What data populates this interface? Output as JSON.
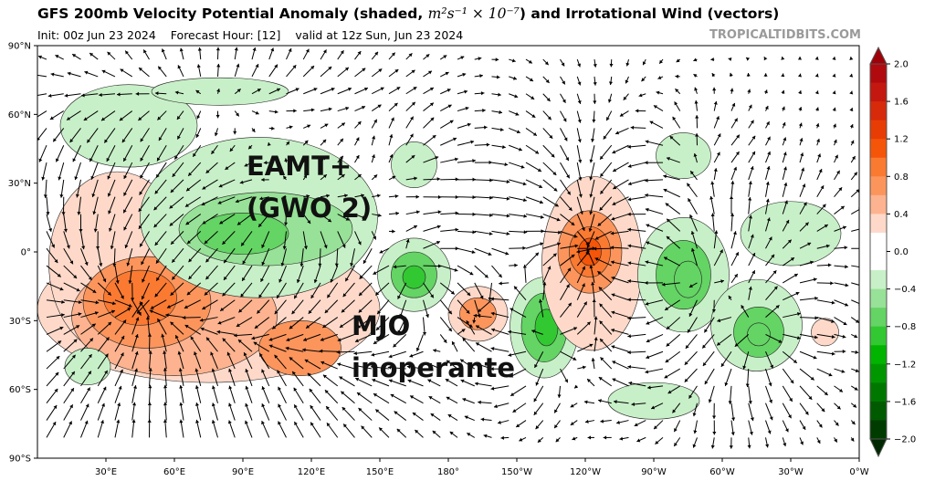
{
  "header": {
    "title_prefix": "GFS 200mb Velocity Potential Anomaly (shaded, ",
    "title_units": "m²s⁻¹ × 10⁻⁷",
    "title_suffix": ") and Irrotational Wind (vectors)",
    "init": "Init: 00z Jun 23 2024",
    "forecast_hour": "Forecast Hour: [12]",
    "valid": "valid at 12z Sun, Jun 23 2024",
    "brand": "TROPICALTIDBITS.COM"
  },
  "axes": {
    "lat_labels": [
      "90°N",
      "60°N",
      "30°N",
      "0°",
      "30°S",
      "60°S",
      "90°S"
    ],
    "lat_values": [
      90,
      60,
      30,
      0,
      -30,
      -60,
      -90
    ],
    "lon_labels": [
      "30°E",
      "60°E",
      "90°E",
      "120°E",
      "150°E",
      "180°",
      "150°W",
      "120°W",
      "90°W",
      "60°W",
      "30°W",
      "0°W"
    ],
    "lon_values": [
      30,
      60,
      90,
      120,
      150,
      180,
      210,
      240,
      270,
      300,
      330,
      360
    ]
  },
  "colorbar": {
    "tick_labels": [
      "2.0",
      "1.6",
      "1.2",
      "0.8",
      "0.4",
      "0.0",
      "−0.4",
      "−0.8",
      "−1.2",
      "−1.6",
      "−2.0"
    ],
    "tick_values": [
      2.0,
      1.6,
      1.2,
      0.8,
      0.4,
      0.0,
      -0.4,
      -0.8,
      -1.2,
      -1.6,
      -2.0
    ],
    "min": -2.0,
    "max": 2.0,
    "step": 0.2,
    "colors_high_to_low": [
      "#b00a0f",
      "#c4170f",
      "#d62a0a",
      "#e83c05",
      "#f55508",
      "#fa7a32",
      "#fc955c",
      "#fdb38f",
      "#fed9c9",
      "#ffffff",
      "#ffffff",
      "#c8f0c8",
      "#98e198",
      "#64d464",
      "#32c832",
      "#00b400",
      "#009600",
      "#007800",
      "#005a00",
      "#003c00"
    ],
    "over_color": "#a00008",
    "under_color": "#002800"
  },
  "annotations": {
    "eamt": "EAMT+",
    "gwo": "(GWO 2)",
    "mjo": "MJO",
    "inoperante": "inoperante"
  },
  "anomaly_centers": [
    {
      "lon": 75,
      "lat": -25,
      "rlon": 75,
      "rlat": 32,
      "value": 0.3
    },
    {
      "lon": 35,
      "lat": -5,
      "rlon": 30,
      "rlat": 40,
      "value": 0.3
    },
    {
      "lon": 60,
      "lat": -28,
      "rlon": 45,
      "rlat": 26,
      "value": 0.5
    },
    {
      "lon": 48,
      "lat": -22,
      "rlon": 28,
      "rlat": 20,
      "value": 0.7
    },
    {
      "lon": 45,
      "lat": -20,
      "rlon": 16,
      "rlat": 12,
      "value": 0.9
    },
    {
      "lon": 115,
      "lat": -42,
      "rlon": 18,
      "rlat": 12,
      "value": 0.7
    },
    {
      "lon": 97,
      "lat": 15,
      "rlon": 52,
      "rlat": 35,
      "value": -0.3
    },
    {
      "lon": 40,
      "lat": 55,
      "rlon": 30,
      "rlat": 18,
      "value": -0.3
    },
    {
      "lon": 100,
      "lat": 10,
      "rlon": 38,
      "rlat": 16,
      "value": -0.5
    },
    {
      "lon": 90,
      "lat": 8,
      "rlon": 20,
      "rlat": 9,
      "value": -0.7
    },
    {
      "lon": 165,
      "lat": -10,
      "rlon": 16,
      "rlat": 16,
      "value": -0.3
    },
    {
      "lon": 165,
      "lat": -10,
      "rlon": 10,
      "rlat": 10,
      "value": -0.6
    },
    {
      "lon": 165,
      "lat": -11,
      "rlon": 5,
      "rlat": 5,
      "value": -0.9
    },
    {
      "lon": 165,
      "lat": 38,
      "rlon": 10,
      "rlat": 10,
      "value": -0.3
    },
    {
      "lon": 193,
      "lat": -27,
      "rlon": 13,
      "rlat": 12,
      "value": 0.4
    },
    {
      "lon": 193,
      "lat": -27,
      "rlon": 8,
      "rlat": 7,
      "value": 0.6
    },
    {
      "lon": 222,
      "lat": -33,
      "rlon": 15,
      "rlat": 22,
      "value": -0.3
    },
    {
      "lon": 222,
      "lat": -33,
      "rlon": 10,
      "rlat": 15,
      "value": -0.6
    },
    {
      "lon": 223,
      "lat": -33,
      "rlon": 5,
      "rlat": 8,
      "value": -0.9
    },
    {
      "lon": 243,
      "lat": -5,
      "rlon": 22,
      "rlat": 38,
      "value": 0.3
    },
    {
      "lon": 242,
      "lat": 0,
      "rlon": 14,
      "rlat": 18,
      "value": 0.6
    },
    {
      "lon": 242,
      "lat": 0,
      "rlon": 9,
      "rlat": 11,
      "value": 0.9
    },
    {
      "lon": 242,
      "lat": 0,
      "rlon": 5,
      "rlat": 6,
      "value": 1.1
    },
    {
      "lon": 283,
      "lat": -10,
      "rlon": 20,
      "rlat": 25,
      "value": -0.3
    },
    {
      "lon": 283,
      "lat": -10,
      "rlon": 12,
      "rlat": 15,
      "value": -0.6
    },
    {
      "lon": 285,
      "lat": -12,
      "rlon": 6,
      "rlat": 8,
      "value": -0.8
    },
    {
      "lon": 315,
      "lat": -32,
      "rlon": 20,
      "rlat": 20,
      "value": -0.3
    },
    {
      "lon": 316,
      "lat": -35,
      "rlon": 11,
      "rlat": 11,
      "value": -0.6
    },
    {
      "lon": 316,
      "lat": -36,
      "rlon": 5,
      "rlat": 5,
      "value": -0.8
    },
    {
      "lon": 330,
      "lat": 8,
      "rlon": 22,
      "rlat": 14,
      "value": -0.3
    },
    {
      "lon": 283,
      "lat": 42,
      "rlon": 12,
      "rlat": 10,
      "value": -0.4
    },
    {
      "lon": 270,
      "lat": -65,
      "rlon": 20,
      "rlat": 8,
      "value": -0.3
    },
    {
      "lon": 22,
      "lat": -50,
      "rlon": 10,
      "rlat": 8,
      "value": -0.3
    },
    {
      "lon": 80,
      "lat": 70,
      "rlon": 30,
      "rlat": 6,
      "value": -0.3
    },
    {
      "lon": 345,
      "lat": -35,
      "rlon": 6,
      "rlat": 6,
      "value": 0.3
    }
  ]
}
